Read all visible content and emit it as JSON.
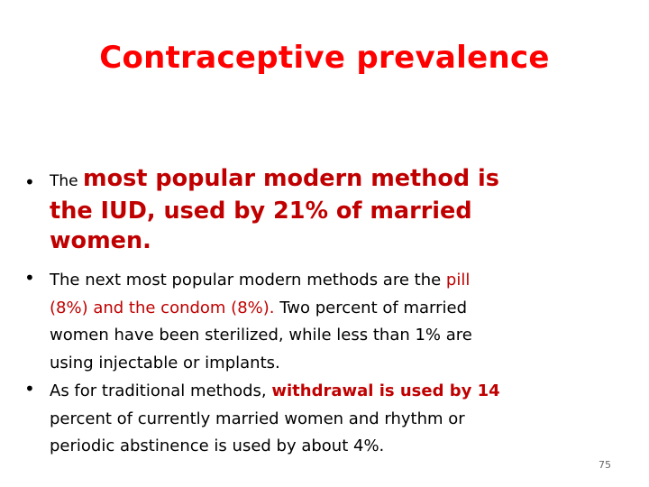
{
  "title": "Contraceptive prevalence",
  "bullet_marker": "•",
  "bullet1": {
    "prefix": "The ",
    "line1": "most popular modern method is",
    "line2": "the IUD, used by 21% of married",
    "line3": "women."
  },
  "bullet2": {
    "line1_a": "The next most popular modern methods are the ",
    "line1_b": "pill",
    "line2_a": "(8%) and the condom (8%).",
    "line2_b": " Two percent of married",
    "line3": "women have been sterilized, while less than 1% are",
    "line4": "using injectable or implants."
  },
  "bullet3": {
    "line1_a": "As for traditional methods, ",
    "line1_b": "withdrawal is used by 14",
    "line2": "percent of currently married women and rhythm or",
    "line3": "periodic abstinence is used by about 4%."
  },
  "page_number": "75",
  "colors": {
    "title": "#ff0000",
    "emphasis": "#c00000",
    "text": "#000000"
  }
}
